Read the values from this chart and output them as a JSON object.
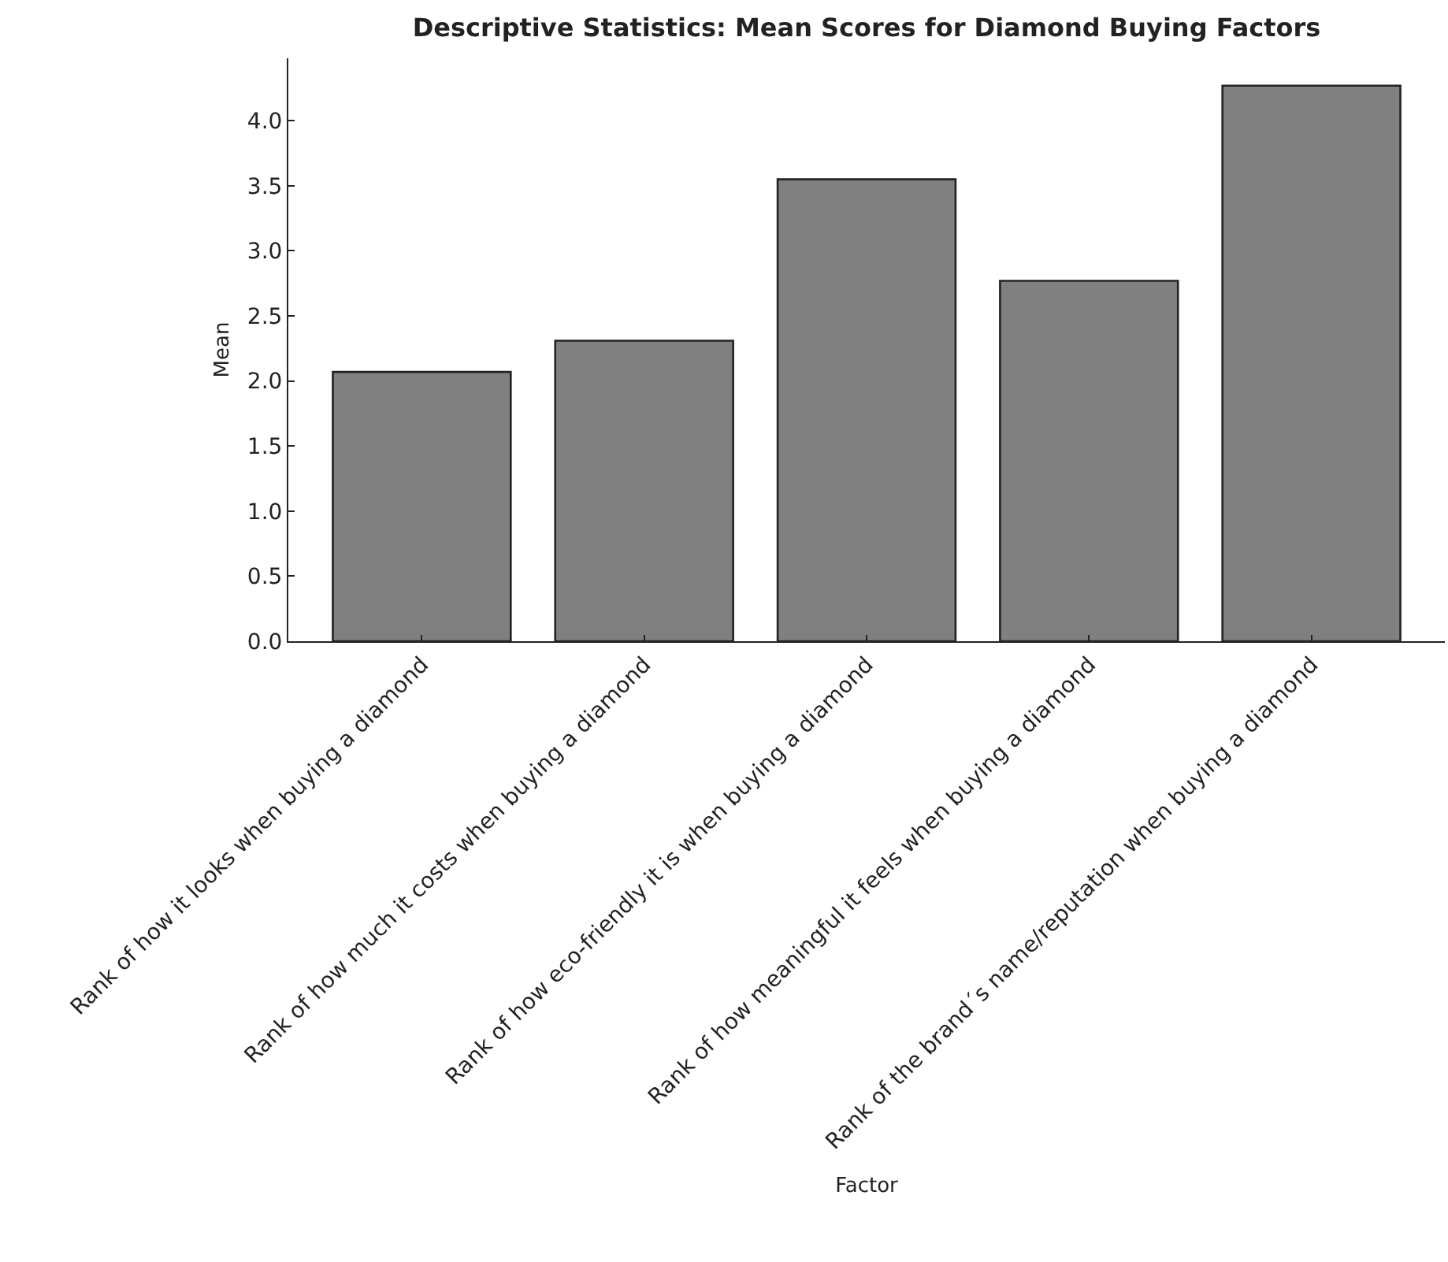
{
  "chart_data": {
    "type": "bar",
    "title": "Descriptive Statistics: Mean Scores for Diamond Buying Factors",
    "xlabel": "Factor",
    "ylabel": "Mean",
    "categories": [
      "Rank of how it looks when buying a diamond",
      "Rank of how much it costs when buying a diamond",
      "Rank of how eco-friendly it is when buying a diamond",
      "Rank of how meaningful it feels when buying a diamond",
      "Rank of the brand´s name/reputation when buying a diamond"
    ],
    "values": [
      2.07,
      2.31,
      3.55,
      2.77,
      4.27
    ],
    "color": "#808080",
    "ylim": [
      0,
      4.48
    ],
    "yticks": [
      {
        "value": 0,
        "label": "0.0"
      },
      {
        "value": 0.5,
        "label": "0.5"
      },
      {
        "value": 1,
        "label": "1.0"
      },
      {
        "value": 1.5,
        "label": "1.5"
      },
      {
        "value": 2,
        "label": "2.0"
      },
      {
        "value": 2.5,
        "label": "2.5"
      },
      {
        "value": 3,
        "label": "3.0"
      },
      {
        "value": 3.5,
        "label": "3.5"
      },
      {
        "value": 4,
        "label": "4.0"
      }
    ]
  }
}
